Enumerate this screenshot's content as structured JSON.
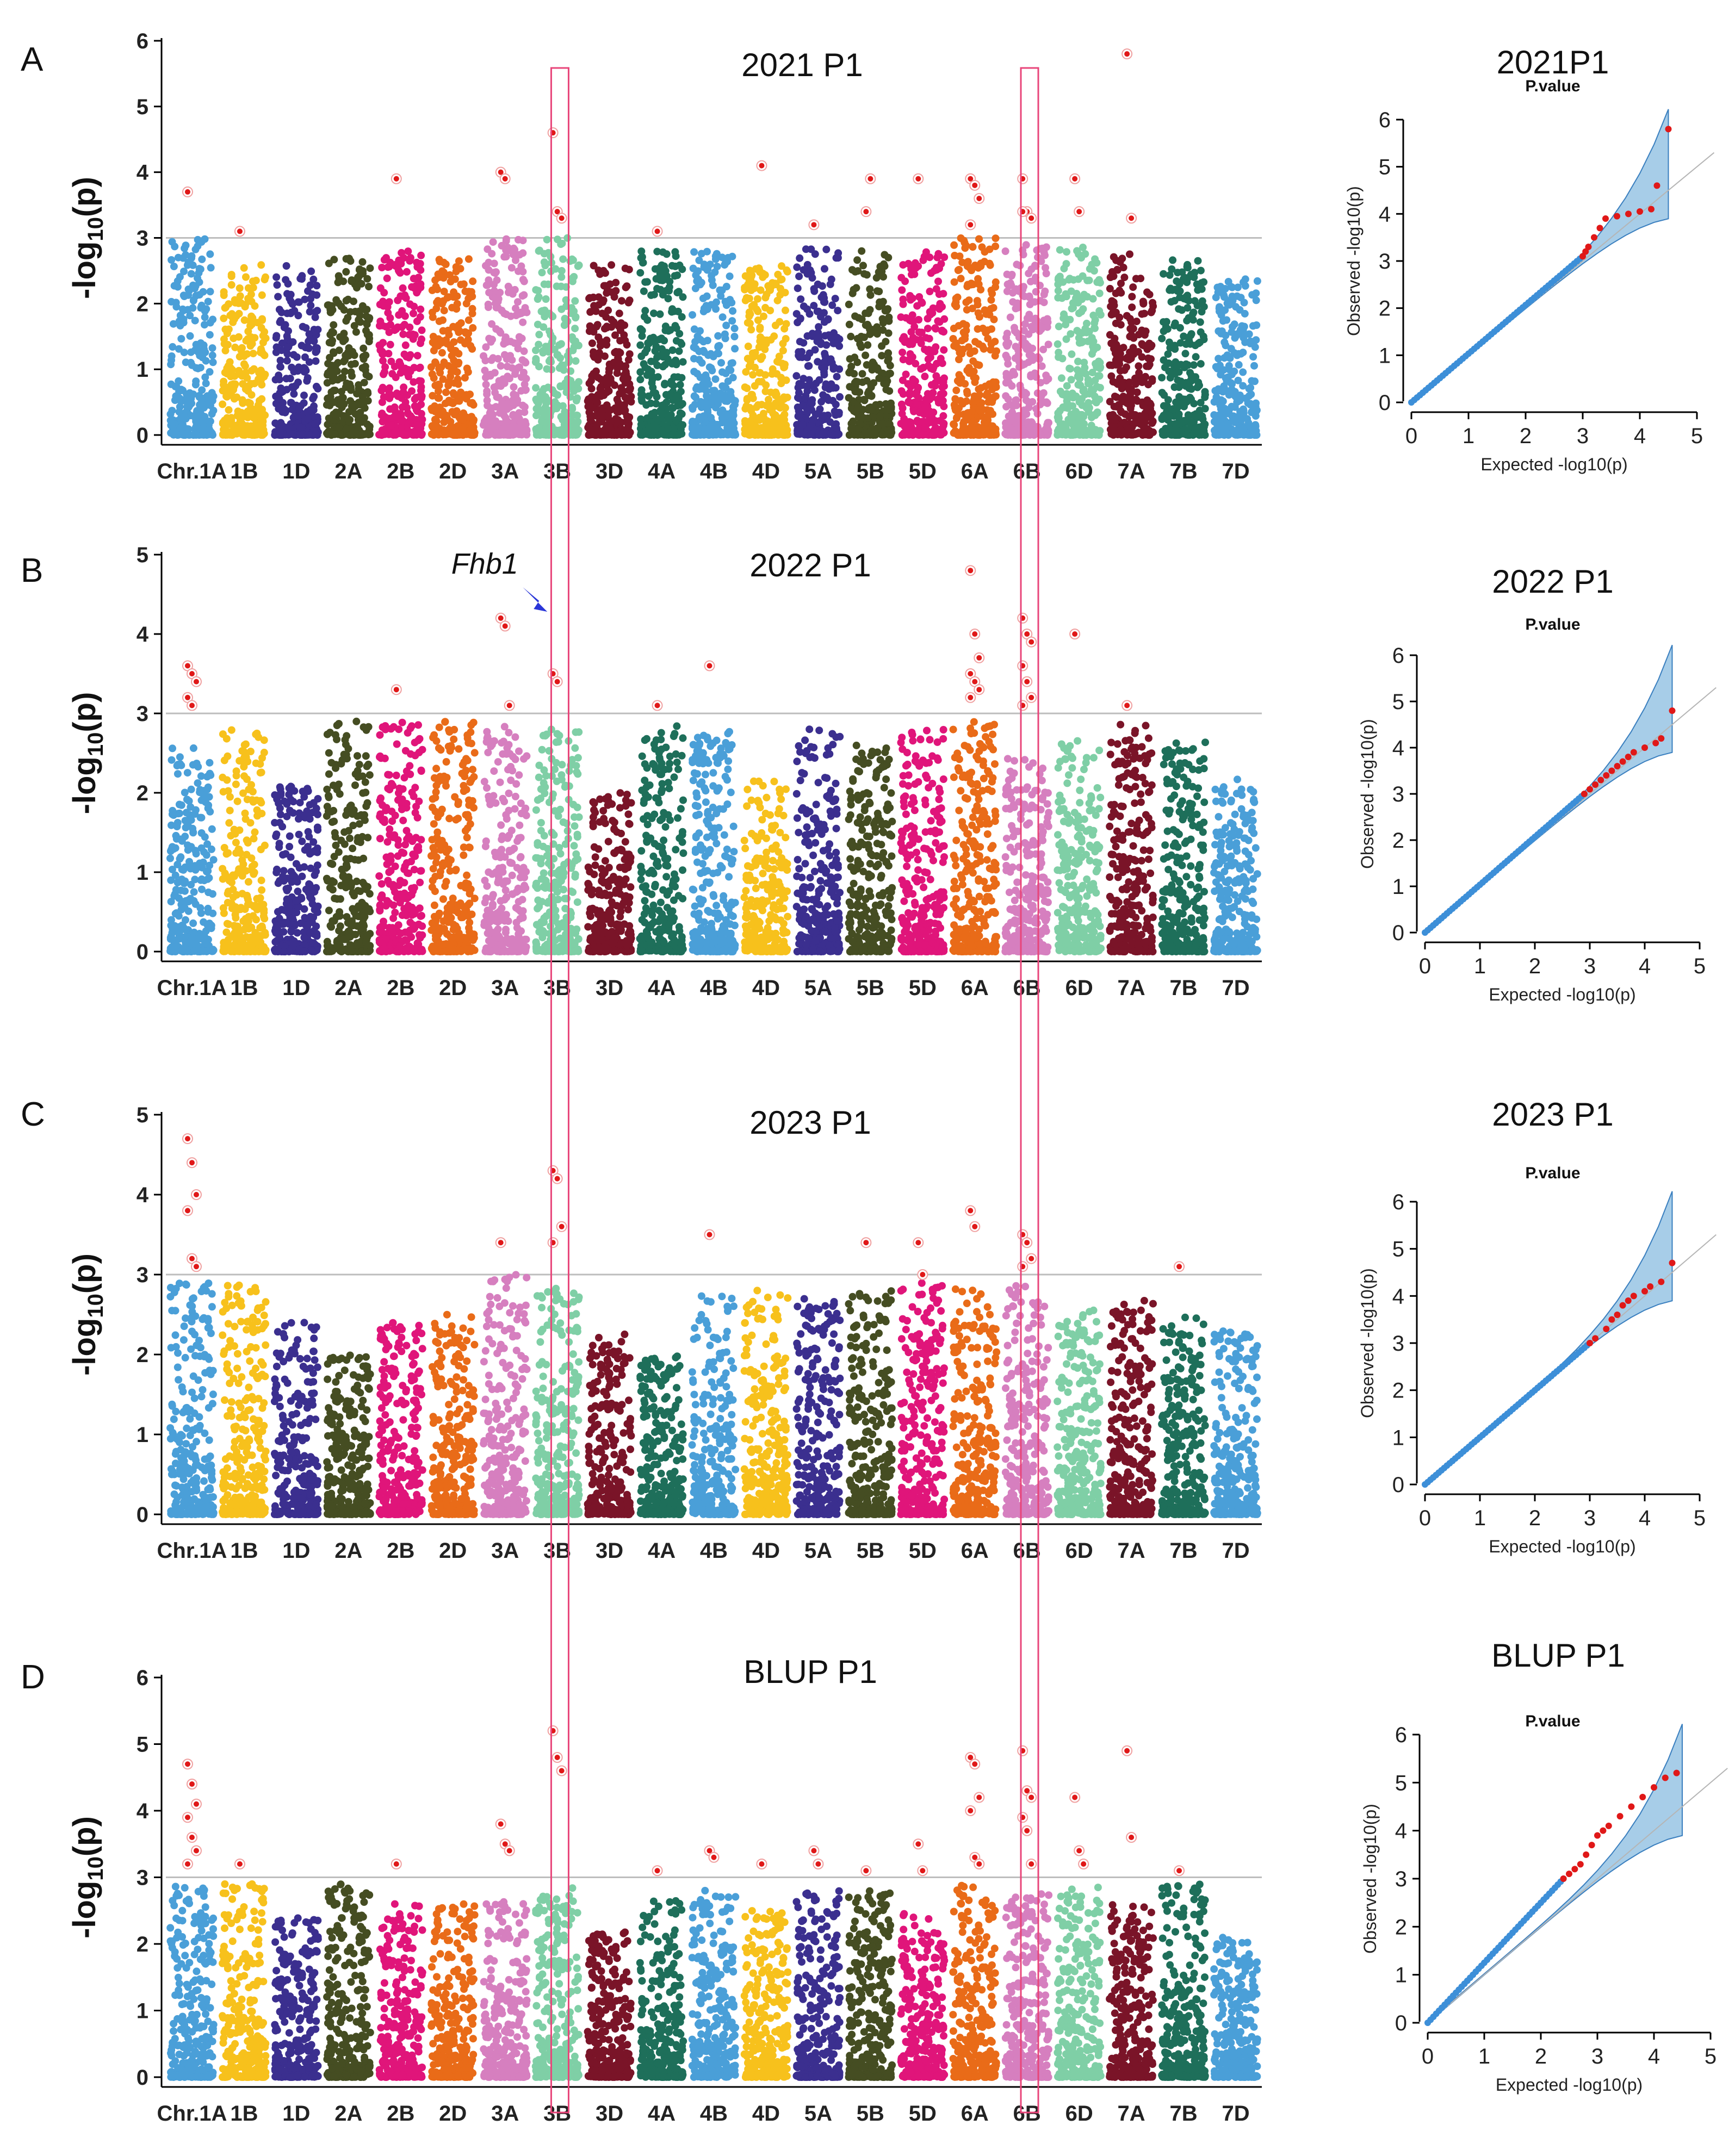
{
  "figure": {
    "highlight_color": "#e8457a",
    "threshold": 3,
    "axis_color": "#000000"
  },
  "chromosomes": [
    "1A",
    "1B",
    "1D",
    "2A",
    "2B",
    "2D",
    "3A",
    "3B",
    "3D",
    "4A",
    "4B",
    "4D",
    "5A",
    "5B",
    "5D",
    "6A",
    "6B",
    "6D",
    "7A",
    "7B",
    "7D"
  ],
  "chromosome_colors": [
    "#4a9fd8",
    "#f7c11c",
    "#3b2f8f",
    "#454d22",
    "#e0157a",
    "#e96b18",
    "#d67fbf",
    "#7fcfa6",
    "#7a1428",
    "#1e6f5a",
    "#4a9fd8",
    "#f7c11c",
    "#3b2f8f",
    "#454d22",
    "#e0157a",
    "#e96b18",
    "#d67fbf",
    "#7fcfa6",
    "#7a1428",
    "#1e6f5a",
    "#4a9fd8"
  ],
  "tick_labels": [
    "Chr.1A",
    "1B",
    "1D",
    "2A",
    "2B",
    "2D",
    "3A",
    "3B",
    "3D",
    "4A",
    "4B",
    "4D",
    "5A",
    "5B",
    "5D",
    "6A",
    "6B",
    "6D",
    "7A",
    "7B",
    "7D"
  ],
  "highlight_boxes": [
    "3B",
    "6B"
  ],
  "annotation": {
    "text": "Fhb1",
    "chromosome": "3B",
    "panel": "B",
    "color": "#2a36d8"
  },
  "chart_data": [
    {
      "type": "scatter",
      "panel_label": "A",
      "title": "2021 P1",
      "ylabel": "-log10(p)",
      "ylim": [
        0,
        6
      ],
      "yticks": [
        0,
        1,
        2,
        3,
        4,
        5,
        6
      ],
      "background_max": [
        3.0,
        2.6,
        2.6,
        2.7,
        2.8,
        2.7,
        3.0,
        3.0,
        2.6,
        2.8,
        2.8,
        2.6,
        2.9,
        2.8,
        2.8,
        3.0,
        2.9,
        2.9,
        2.8,
        2.7,
        2.4
      ],
      "significant": [
        {
          "chr": "1A",
          "values": [
            3.7
          ]
        },
        {
          "chr": "1B",
          "values": [
            3.1
          ]
        },
        {
          "chr": "2B",
          "values": [
            3.9
          ]
        },
        {
          "chr": "3A",
          "values": [
            4.0,
            3.9
          ]
        },
        {
          "chr": "3B",
          "values": [
            4.6,
            3.4,
            3.3
          ]
        },
        {
          "chr": "4A",
          "values": [
            3.1
          ]
        },
        {
          "chr": "4D",
          "values": [
            4.1
          ]
        },
        {
          "chr": "5A",
          "values": [
            3.2
          ]
        },
        {
          "chr": "5B",
          "values": [
            3.4,
            3.9
          ]
        },
        {
          "chr": "5D",
          "values": [
            3.9
          ]
        },
        {
          "chr": "6A",
          "values": [
            3.9,
            3.8,
            3.6,
            3.2
          ]
        },
        {
          "chr": "6B",
          "values": [
            3.9,
            3.4,
            3.3,
            3.4
          ]
        },
        {
          "chr": "6D",
          "values": [
            3.9,
            3.4
          ]
        },
        {
          "chr": "7A",
          "values": [
            5.8,
            3.3
          ]
        }
      ],
      "qq": {
        "title": "2021P1",
        "subtitle": "P.value",
        "xlabel": "Expected -log10(p)",
        "ylabel": "Observed -log10(p)",
        "xlim": [
          0,
          5
        ],
        "ylim": [
          0,
          6
        ],
        "xticks": [
          0,
          1,
          2,
          3,
          4,
          5
        ],
        "yticks": [
          0,
          1,
          2,
          3,
          4,
          5,
          6
        ],
        "red_points": [
          [
            3.0,
            3.1
          ],
          [
            3.05,
            3.2
          ],
          [
            3.1,
            3.3
          ],
          [
            3.2,
            3.5
          ],
          [
            3.3,
            3.7
          ],
          [
            3.4,
            3.9
          ],
          [
            3.6,
            3.95
          ],
          [
            3.8,
            4.0
          ],
          [
            4.0,
            4.05
          ],
          [
            4.2,
            4.1
          ],
          [
            4.3,
            4.6
          ],
          [
            4.5,
            5.8
          ]
        ]
      }
    },
    {
      "type": "scatter",
      "panel_label": "B",
      "title": "2022 P1",
      "ylabel": "-log10(p)",
      "ylim": [
        0,
        5
      ],
      "yticks": [
        0,
        1,
        2,
        3,
        4,
        5
      ],
      "background_max": [
        2.6,
        2.8,
        2.1,
        2.9,
        2.9,
        2.9,
        2.9,
        2.8,
        2.0,
        2.9,
        2.8,
        2.2,
        2.8,
        2.6,
        2.8,
        2.9,
        2.5,
        2.7,
        2.9,
        2.7,
        2.2
      ],
      "significant": [
        {
          "chr": "1A",
          "values": [
            3.6,
            3.5,
            3.4,
            3.2,
            3.1
          ]
        },
        {
          "chr": "2B",
          "values": [
            3.3
          ]
        },
        {
          "chr": "3A",
          "values": [
            4.2,
            4.1,
            3.1
          ]
        },
        {
          "chr": "3B",
          "values": [
            3.5,
            3.4
          ]
        },
        {
          "chr": "4A",
          "values": [
            3.1
          ]
        },
        {
          "chr": "4B",
          "values": [
            3.6
          ]
        },
        {
          "chr": "6A",
          "values": [
            4.8,
            4.0,
            3.7,
            3.5,
            3.4,
            3.3,
            3.2
          ]
        },
        {
          "chr": "6B",
          "values": [
            4.2,
            4.0,
            3.9,
            3.6,
            3.4,
            3.2,
            3.1
          ]
        },
        {
          "chr": "6D",
          "values": [
            4.0
          ]
        },
        {
          "chr": "7A",
          "values": [
            3.1
          ]
        }
      ],
      "qq": {
        "title": "2022 P1",
        "subtitle": "P.value",
        "xlabel": "Expected -log10(p)",
        "ylabel": "Observed -log10(p)",
        "xlim": [
          0,
          5
        ],
        "ylim": [
          0,
          6
        ],
        "xticks": [
          0,
          1,
          2,
          3,
          4,
          5
        ],
        "yticks": [
          0,
          1,
          2,
          3,
          4,
          5,
          6
        ],
        "red_points": [
          [
            2.9,
            3.0
          ],
          [
            3.0,
            3.1
          ],
          [
            3.1,
            3.2
          ],
          [
            3.2,
            3.3
          ],
          [
            3.3,
            3.4
          ],
          [
            3.4,
            3.5
          ],
          [
            3.5,
            3.6
          ],
          [
            3.6,
            3.7
          ],
          [
            3.7,
            3.8
          ],
          [
            3.8,
            3.9
          ],
          [
            4.0,
            4.0
          ],
          [
            4.2,
            4.1
          ],
          [
            4.3,
            4.2
          ],
          [
            4.5,
            4.8
          ]
        ]
      }
    },
    {
      "type": "scatter",
      "panel_label": "C",
      "title": "2023 P1",
      "ylabel": "-log10(p)",
      "ylim": [
        0,
        5
      ],
      "yticks": [
        0,
        1,
        2,
        3,
        4,
        5
      ],
      "background_max": [
        2.9,
        2.9,
        2.4,
        2.0,
        2.4,
        2.5,
        3.0,
        2.9,
        2.3,
        2.0,
        2.8,
        2.8,
        2.7,
        2.8,
        2.9,
        2.9,
        2.9,
        2.6,
        2.7,
        2.5,
        2.3
      ],
      "significant": [
        {
          "chr": "1A",
          "values": [
            4.7,
            4.4,
            4.0,
            3.8,
            3.2,
            3.1
          ]
        },
        {
          "chr": "3A",
          "values": [
            3.4
          ]
        },
        {
          "chr": "3B",
          "values": [
            4.3,
            4.2,
            3.6,
            3.4
          ]
        },
        {
          "chr": "4B",
          "values": [
            3.5
          ]
        },
        {
          "chr": "5B",
          "values": [
            3.4
          ]
        },
        {
          "chr": "5D",
          "values": [
            3.4,
            3.0
          ]
        },
        {
          "chr": "6A",
          "values": [
            3.8,
            3.6
          ]
        },
        {
          "chr": "6B",
          "values": [
            3.5,
            3.4,
            3.2,
            3.1
          ]
        },
        {
          "chr": "7B",
          "values": [
            3.1
          ]
        }
      ],
      "qq": {
        "title": "2023 P1",
        "subtitle": "P.value",
        "xlabel": "Expected -log10(p)",
        "ylabel": "Observed -log10(p)",
        "xlim": [
          0,
          5
        ],
        "ylim": [
          0,
          6
        ],
        "xticks": [
          0,
          1,
          2,
          3,
          4,
          5
        ],
        "yticks": [
          0,
          1,
          2,
          3,
          4,
          5,
          6
        ],
        "red_points": [
          [
            3.0,
            3.0
          ],
          [
            3.1,
            3.1
          ],
          [
            3.3,
            3.3
          ],
          [
            3.4,
            3.5
          ],
          [
            3.5,
            3.6
          ],
          [
            3.6,
            3.8
          ],
          [
            3.7,
            3.9
          ],
          [
            3.8,
            4.0
          ],
          [
            4.0,
            4.1
          ],
          [
            4.1,
            4.2
          ],
          [
            4.3,
            4.3
          ],
          [
            4.5,
            4.7
          ]
        ]
      }
    },
    {
      "type": "scatter",
      "panel_label": "D",
      "title": "BLUP P1",
      "ylabel": "-log10(p)",
      "ylim": [
        0,
        6
      ],
      "yticks": [
        0,
        1,
        2,
        3,
        4,
        5,
        6
      ],
      "background_max": [
        2.9,
        2.9,
        2.4,
        2.9,
        2.6,
        2.6,
        2.7,
        2.9,
        2.2,
        2.7,
        2.8,
        2.5,
        2.8,
        2.8,
        2.5,
        2.9,
        2.8,
        2.9,
        2.6,
        2.9,
        2.1
      ],
      "significant": [
        {
          "chr": "1A",
          "values": [
            4.7,
            4.4,
            4.1,
            3.9,
            3.6,
            3.4,
            3.2
          ]
        },
        {
          "chr": "1B",
          "values": [
            3.2
          ]
        },
        {
          "chr": "2B",
          "values": [
            3.2
          ]
        },
        {
          "chr": "3A",
          "values": [
            3.8,
            3.5,
            3.4
          ]
        },
        {
          "chr": "3B",
          "values": [
            5.2,
            4.8,
            4.6
          ]
        },
        {
          "chr": "4A",
          "values": [
            3.1
          ]
        },
        {
          "chr": "4B",
          "values": [
            3.4,
            3.3
          ]
        },
        {
          "chr": "4D",
          "values": [
            3.2
          ]
        },
        {
          "chr": "5A",
          "values": [
            3.4,
            3.2
          ]
        },
        {
          "chr": "5B",
          "values": [
            3.1
          ]
        },
        {
          "chr": "5D",
          "values": [
            3.5,
            3.1
          ]
        },
        {
          "chr": "6A",
          "values": [
            4.8,
            4.7,
            4.2,
            4.0,
            3.3,
            3.2
          ]
        },
        {
          "chr": "6B",
          "values": [
            4.9,
            4.3,
            4.2,
            3.9,
            3.7,
            3.2
          ]
        },
        {
          "chr": "6D",
          "values": [
            4.2,
            3.4,
            3.2
          ]
        },
        {
          "chr": "7A",
          "values": [
            4.9,
            3.6
          ]
        },
        {
          "chr": "7B",
          "values": [
            3.1
          ]
        }
      ],
      "qq": {
        "title": "BLUP P1",
        "subtitle": "P.value",
        "xlabel": "Expected -log10(p)",
        "ylabel": "Observed -log10(p)",
        "xlim": [
          0,
          5
        ],
        "ylim": [
          0,
          6
        ],
        "xticks": [
          0,
          1,
          2,
          3,
          4,
          5
        ],
        "yticks": [
          0,
          1,
          2,
          3,
          4,
          5,
          6
        ],
        "red_points": [
          [
            2.4,
            3.0
          ],
          [
            2.5,
            3.1
          ],
          [
            2.6,
            3.2
          ],
          [
            2.7,
            3.3
          ],
          [
            2.8,
            3.5
          ],
          [
            2.9,
            3.7
          ],
          [
            3.0,
            3.9
          ],
          [
            3.1,
            4.0
          ],
          [
            3.2,
            4.1
          ],
          [
            3.4,
            4.3
          ],
          [
            3.6,
            4.5
          ],
          [
            3.8,
            4.7
          ],
          [
            4.0,
            4.9
          ],
          [
            4.2,
            5.1
          ],
          [
            4.4,
            5.2
          ]
        ]
      }
    }
  ]
}
